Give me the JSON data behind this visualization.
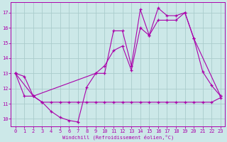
{
  "xlabel": "Windchill (Refroidissement éolien,°C)",
  "bg_color": "#cce8e8",
  "line_color": "#aa00aa",
  "grid_color": "#aacccc",
  "xlim": [
    -0.5,
    23.5
  ],
  "ylim": [
    9.5,
    17.7
  ],
  "yticks": [
    10,
    11,
    12,
    13,
    14,
    15,
    16,
    17
  ],
  "xticks": [
    0,
    1,
    2,
    3,
    4,
    5,
    6,
    7,
    8,
    9,
    10,
    11,
    12,
    13,
    14,
    15,
    16,
    17,
    18,
    19,
    20,
    21,
    22,
    23
  ],
  "line_flat_x": [
    0,
    1,
    2,
    3,
    4,
    5,
    6,
    7,
    8,
    9,
    10,
    11,
    12,
    13,
    14,
    15,
    16,
    17,
    18,
    19,
    20,
    21,
    22,
    23
  ],
  "line_flat_y": [
    13.0,
    12.8,
    11.5,
    11.1,
    11.1,
    11.1,
    11.1,
    11.1,
    11.1,
    11.1,
    11.1,
    11.1,
    11.1,
    11.1,
    11.1,
    11.1,
    11.1,
    11.1,
    11.1,
    11.1,
    11.1,
    11.1,
    11.1,
    11.4
  ],
  "line_zigzag_x": [
    0,
    1,
    2,
    3,
    4,
    5,
    6,
    7,
    8,
    9,
    10,
    11,
    12,
    13,
    14,
    15,
    16,
    17,
    18,
    19,
    20,
    21,
    22,
    23
  ],
  "line_zigzag_y": [
    13.0,
    11.5,
    11.5,
    11.1,
    10.5,
    10.1,
    9.9,
    9.8,
    12.1,
    13.0,
    13.0,
    15.8,
    15.8,
    13.5,
    17.2,
    15.5,
    17.3,
    16.8,
    16.8,
    17.0,
    15.3,
    13.1,
    12.2,
    11.5
  ],
  "line_smooth_x": [
    0,
    2,
    9,
    10,
    11,
    12,
    13,
    14,
    15,
    16,
    17,
    18,
    19,
    20,
    23
  ],
  "line_smooth_y": [
    13.0,
    11.5,
    13.0,
    13.5,
    14.5,
    14.8,
    13.2,
    16.0,
    15.5,
    16.5,
    16.5,
    16.5,
    17.0,
    15.3,
    11.5
  ]
}
